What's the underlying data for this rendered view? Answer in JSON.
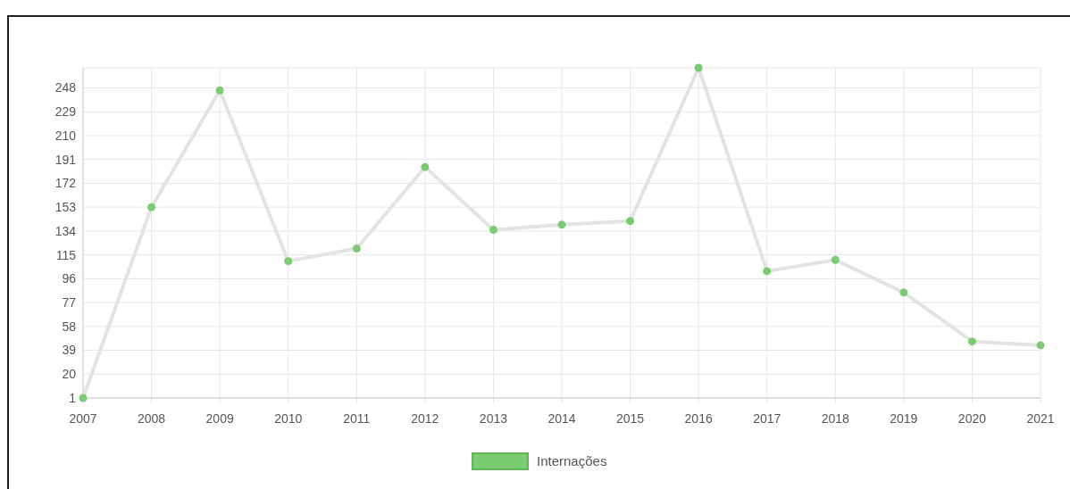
{
  "chart_data": {
    "type": "line",
    "categories": [
      "2007",
      "2008",
      "2009",
      "2010",
      "2011",
      "2012",
      "2013",
      "2014",
      "2015",
      "2016",
      "2017",
      "2018",
      "2019",
      "2020",
      "2021"
    ],
    "series": [
      {
        "name": "Internações",
        "color": "#7acb72",
        "values": [
          1,
          153,
          246,
          110,
          120,
          185,
          135,
          139,
          142,
          264,
          102,
          111,
          85,
          46,
          43
        ]
      }
    ],
    "ylim": [
      1,
      264
    ],
    "yticks": [
      1,
      20,
      39,
      58,
      77,
      96,
      115,
      134,
      153,
      172,
      191,
      210,
      229,
      248
    ],
    "grid": true,
    "legend": "bottom",
    "marker": "circle",
    "line_style": "solid"
  }
}
